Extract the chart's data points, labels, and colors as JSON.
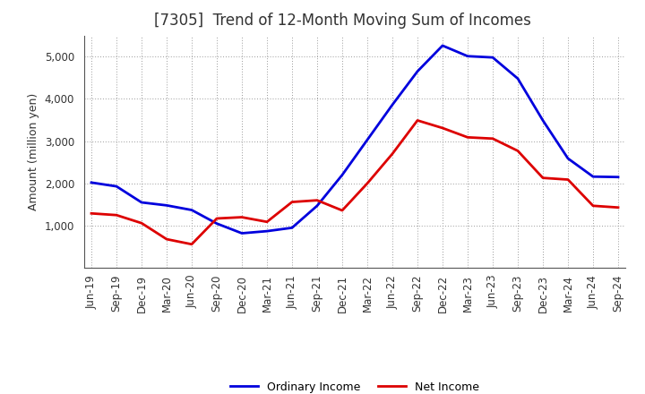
{
  "title": "[7305]  Trend of 12-Month Moving Sum of Incomes",
  "ylabel": "Amount (million yen)",
  "background_color": "#ffffff",
  "grid_color": "#999999",
  "x_labels": [
    "Jun-19",
    "Sep-19",
    "Dec-19",
    "Mar-20",
    "Jun-20",
    "Sep-20",
    "Dec-20",
    "Mar-21",
    "Jun-21",
    "Sep-21",
    "Dec-21",
    "Mar-22",
    "Jun-22",
    "Sep-22",
    "Dec-22",
    "Mar-23",
    "Jun-23",
    "Sep-23",
    "Dec-23",
    "Mar-24",
    "Jun-24",
    "Sep-24"
  ],
  "ordinary_income": [
    2020,
    1930,
    1550,
    1480,
    1370,
    1050,
    820,
    870,
    950,
    1470,
    2200,
    3030,
    3860,
    4650,
    5260,
    5010,
    4980,
    4480,
    3490,
    2590,
    2160,
    2150
  ],
  "net_income": [
    1290,
    1250,
    1060,
    680,
    560,
    1170,
    1200,
    1090,
    1560,
    1600,
    1360,
    2000,
    2700,
    3490,
    3310,
    3090,
    3060,
    2770,
    2130,
    2090,
    1470,
    1430
  ],
  "ordinary_color": "#0000dd",
  "net_color": "#dd0000",
  "ylim": [
    0,
    5500
  ],
  "yticks": [
    1000,
    2000,
    3000,
    4000,
    5000
  ],
  "line_width": 2.0,
  "title_fontsize": 12,
  "title_color": "#333333",
  "tick_fontsize": 8.5,
  "ylabel_fontsize": 9,
  "legend_labels": [
    "Ordinary Income",
    "Net Income"
  ],
  "legend_fontsize": 9
}
